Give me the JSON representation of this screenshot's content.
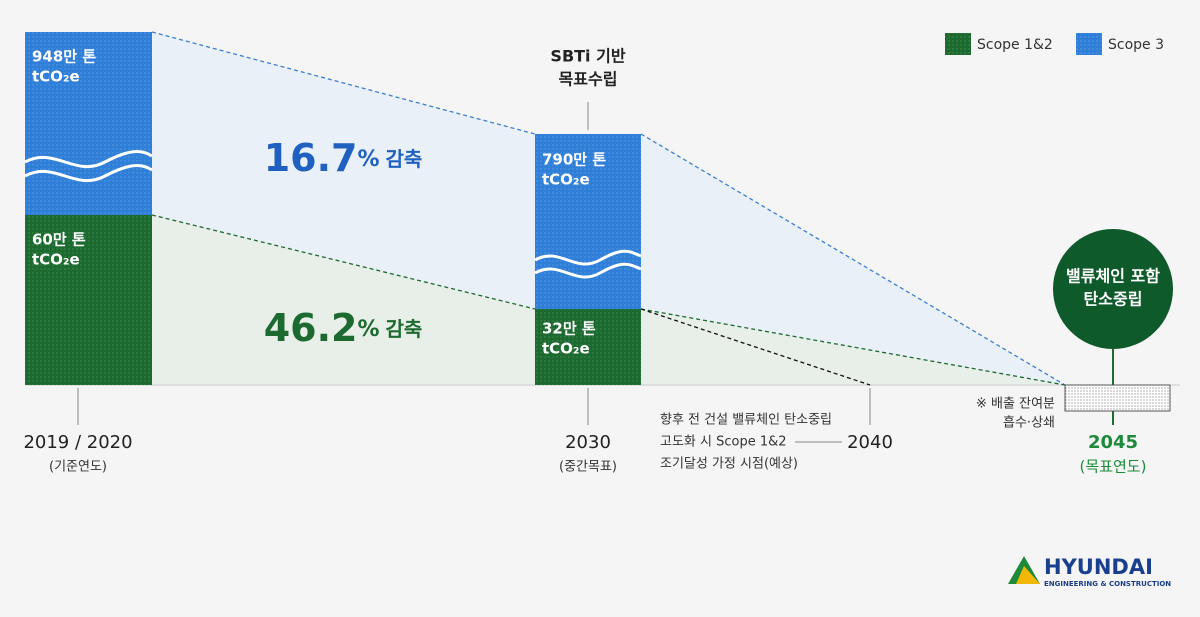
{
  "legend": [
    "Scope 1&2",
    "Scope 3"
  ],
  "bars": [
    {
      "scope3": [
        "948만 톤",
        "tCO₂e"
      ],
      "scope12": [
        "60만 톤",
        "tCO₂e"
      ],
      "year": "2019 / 2020",
      "note": "(기준연도)"
    },
    {
      "scope3": [
        "790만 톤",
        "tCO₂e"
      ],
      "scope12": [
        "32만 톤",
        "tCO₂e"
      ],
      "year": "2030",
      "note": "(중간목표)"
    }
  ],
  "reductions": [
    {
      "number": "16.7",
      "unit": "%",
      "word": "감축"
    },
    {
      "number": "46.2",
      "unit": "%",
      "word": "감축"
    }
  ],
  "sbti": [
    "SBTi 기반",
    "목표수립"
  ],
  "milestone_2040": {
    "year": "2040",
    "note": [
      "향후 전 건설 밸류체인 탄소중립",
      "고도화 시 Scope 1&2",
      "조기달성 가정 시점(예상)"
    ]
  },
  "target_2045": {
    "year": "2045",
    "note": "(목표연도)",
    "circle": [
      "밸류체인 포함",
      "탄소중립"
    ],
    "residual": [
      "※ 배출 잔여분",
      "흡수·상쇄"
    ]
  },
  "logo": {
    "name": "HYUNDAI",
    "sub": "ENGINEERING & CONSTRUCTION"
  }
}
